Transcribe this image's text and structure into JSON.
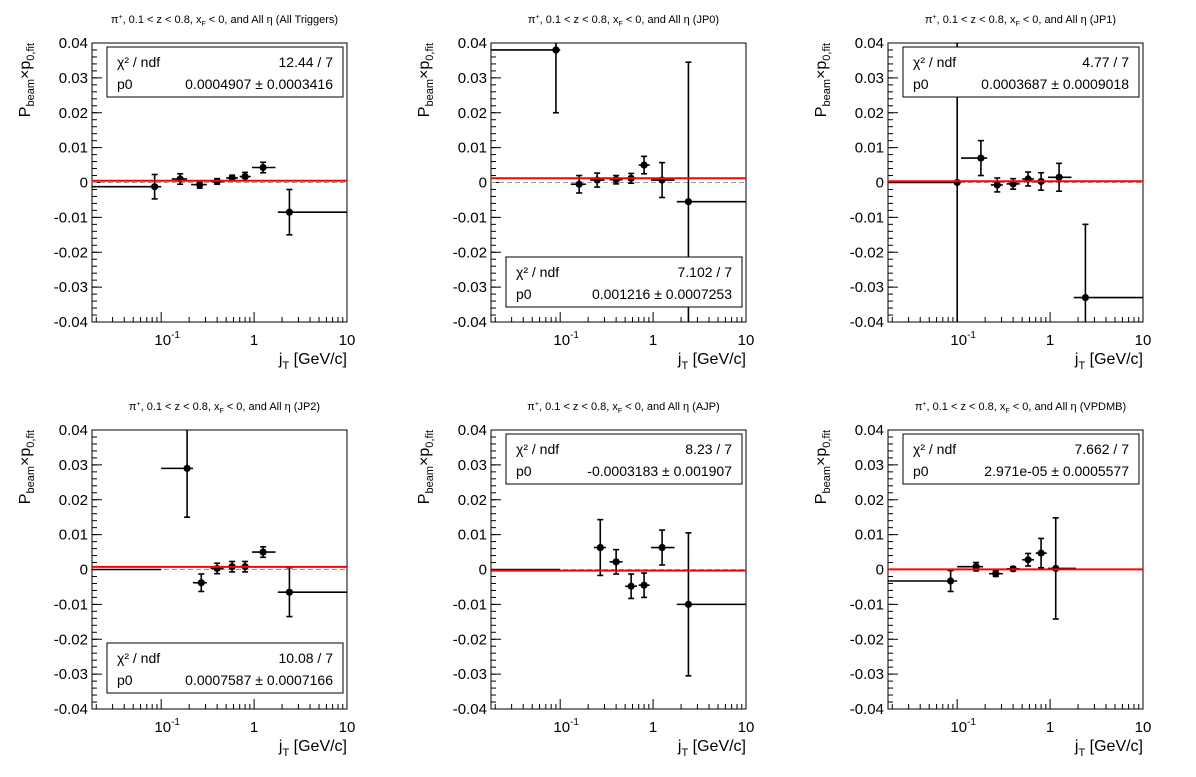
{
  "chart_data": [
    {
      "type": "scatter",
      "title": "π⁺, 0.1 < z < 0.8, x_F < 0, and All η (All Triggers)",
      "title_parts": {
        "pre": "π",
        "sup": "+",
        "mid": ", 0.1 < z < 0.8, x",
        "sub": "F",
        "post": " < 0, and All η (All Triggers)"
      },
      "ylabel": "P_beam×p_0,fit",
      "xlabel": "j_T [GeV/c]",
      "xscale": "log",
      "xlim": [
        0.018,
        10
      ],
      "ylim": [
        -0.04,
        0.04
      ],
      "fit": {
        "chi2_label": "χ² / ndf",
        "chi2_value": "12.44 / 7",
        "p0_label": "p0",
        "p0_value": "0.0004907 ± 0.0003416",
        "value": 0.0004907
      },
      "points": [
        {
          "x": 0.085,
          "xlo": 0.018,
          "xhi": 0.1,
          "y": -0.0012,
          "dy": 0.0035
        },
        {
          "x": 0.16,
          "xlo": 0.13,
          "xhi": 0.19,
          "y": 0.001,
          "dy": 0.0015
        },
        {
          "x": 0.26,
          "xlo": 0.21,
          "xhi": 0.31,
          "y": -0.0006,
          "dy": 0.001
        },
        {
          "x": 0.4,
          "xlo": 0.34,
          "xhi": 0.47,
          "y": 0.0003,
          "dy": 0.0008
        },
        {
          "x": 0.58,
          "xlo": 0.5,
          "xhi": 0.67,
          "y": 0.0013,
          "dy": 0.0008
        },
        {
          "x": 0.8,
          "xlo": 0.7,
          "xhi": 0.92,
          "y": 0.0017,
          "dy": 0.0012
        },
        {
          "x": 1.25,
          "xlo": 0.95,
          "xhi": 1.7,
          "y": 0.0043,
          "dy": 0.0015
        },
        {
          "x": 2.4,
          "xlo": 1.8,
          "xhi": 10,
          "y": -0.0085,
          "dy": 0.0065
        }
      ]
    },
    {
      "type": "scatter",
      "title": "π⁺, 0.1 < z < 0.8, x_F < 0, and All η (JP0)",
      "title_parts": {
        "pre": "π",
        "sup": "+",
        "mid": ", 0.1 < z < 0.8, x",
        "sub": "F",
        "post": " < 0, and All η (JP0)"
      },
      "ylabel": "P_beam×p_0,fit",
      "xlabel": "j_T [GeV/c]",
      "xscale": "log",
      "xlim": [
        0.018,
        10
      ],
      "ylim": [
        -0.04,
        0.04
      ],
      "fit": {
        "chi2_label": "χ² / ndf",
        "chi2_value": "7.102 / 7",
        "p0_label": "p0",
        "p0_value": "0.001216 ± 0.0007253",
        "value": 0.001216
      },
      "points": [
        {
          "x": 0.09,
          "xlo": 0.018,
          "xhi": 0.1,
          "y": 0.038,
          "dy": 0.018
        },
        {
          "x": 0.16,
          "xlo": 0.13,
          "xhi": 0.19,
          "y": -0.0005,
          "dy": 0.0025
        },
        {
          "x": 0.25,
          "xlo": 0.21,
          "xhi": 0.3,
          "y": 0.0007,
          "dy": 0.002
        },
        {
          "x": 0.4,
          "xlo": 0.34,
          "xhi": 0.47,
          "y": 0.0008,
          "dy": 0.0012
        },
        {
          "x": 0.58,
          "xlo": 0.5,
          "xhi": 0.67,
          "y": 0.0012,
          "dy": 0.0014
        },
        {
          "x": 0.8,
          "xlo": 0.7,
          "xhi": 0.92,
          "y": 0.005,
          "dy": 0.0025
        },
        {
          "x": 1.25,
          "xlo": 0.95,
          "xhi": 1.7,
          "y": 0.0007,
          "dy": 0.005
        },
        {
          "x": 2.4,
          "xlo": 1.8,
          "xhi": 10,
          "y": -0.0055,
          "dy": 0.04
        }
      ]
    },
    {
      "type": "scatter",
      "title": "π⁺, 0.1 < z < 0.8, x_F < 0, and All η (JP1)",
      "title_parts": {
        "pre": "π",
        "sup": "+",
        "mid": ", 0.1 < z < 0.8, x",
        "sub": "F",
        "post": " < 0, and All η (JP1)"
      },
      "ylabel": "P_beam×p_0,fit",
      "xlabel": "j_T [GeV/c]",
      "xscale": "log",
      "xlim": [
        0.018,
        10
      ],
      "ylim": [
        -0.04,
        0.04
      ],
      "fit": {
        "chi2_label": "χ² / ndf",
        "chi2_value": "4.77 / 7",
        "p0_label": "p0",
        "p0_value": "0.0003687 ± 0.0009018",
        "value": 0.0003687
      },
      "points": [
        {
          "x": 0.1,
          "xlo": 0.018,
          "xhi": 0.105,
          "y": 0.0,
          "dy": 0.042
        },
        {
          "x": 0.18,
          "xlo": 0.11,
          "xhi": 0.21,
          "y": 0.007,
          "dy": 0.005
        },
        {
          "x": 0.27,
          "xlo": 0.23,
          "xhi": 0.31,
          "y": -0.0007,
          "dy": 0.002
        },
        {
          "x": 0.4,
          "xlo": 0.34,
          "xhi": 0.47,
          "y": -0.0004,
          "dy": 0.0015
        },
        {
          "x": 0.58,
          "xlo": 0.5,
          "xhi": 0.67,
          "y": 0.001,
          "dy": 0.002
        },
        {
          "x": 0.8,
          "xlo": 0.7,
          "xhi": 0.92,
          "y": 0.0003,
          "dy": 0.0025
        },
        {
          "x": 1.25,
          "xlo": 0.95,
          "xhi": 1.7,
          "y": 0.0015,
          "dy": 0.004
        },
        {
          "x": 2.4,
          "xlo": 1.8,
          "xhi": 10,
          "y": -0.033,
          "dy": 0.021
        }
      ]
    },
    {
      "type": "scatter",
      "title": "π⁺, 0.1 < z < 0.8, x_F < 0, and All η (JP2)",
      "title_parts": {
        "pre": "π",
        "sup": "+",
        "mid": ", 0.1 < z < 0.8, x",
        "sub": "F",
        "post": " < 0, and All η (JP2)"
      },
      "ylabel": "P_beam×p_0,fit",
      "xlabel": "j_T [GeV/c]",
      "xscale": "log",
      "xlim": [
        0.018,
        10
      ],
      "ylim": [
        -0.04,
        0.04
      ],
      "fit": {
        "chi2_label": "χ² / ndf",
        "chi2_value": "10.08 / 7",
        "p0_label": "p0",
        "p0_value": "0.0007587 ± 0.0007166",
        "value": 0.0007587
      },
      "points": [
        {
          "x": 0.05,
          "xlo": 0.018,
          "xhi": 0.1,
          "y": 0.0,
          "dy": 0.0
        },
        {
          "x": 0.19,
          "xlo": 0.1,
          "xhi": 0.22,
          "y": 0.029,
          "dy": 0.014
        },
        {
          "x": 0.27,
          "xlo": 0.22,
          "xhi": 0.31,
          "y": -0.0038,
          "dy": 0.0025
        },
        {
          "x": 0.4,
          "xlo": 0.34,
          "xhi": 0.47,
          "y": 0.0003,
          "dy": 0.0015
        },
        {
          "x": 0.58,
          "xlo": 0.5,
          "xhi": 0.67,
          "y": 0.0008,
          "dy": 0.0015
        },
        {
          "x": 0.8,
          "xlo": 0.7,
          "xhi": 0.92,
          "y": 0.0008,
          "dy": 0.0015
        },
        {
          "x": 1.25,
          "xlo": 0.95,
          "xhi": 1.7,
          "y": 0.005,
          "dy": 0.0015
        },
        {
          "x": 2.4,
          "xlo": 1.8,
          "xhi": 10,
          "y": -0.0065,
          "dy": 0.007
        }
      ]
    },
    {
      "type": "scatter",
      "title": "π⁺, 0.1 < z < 0.8, x_F < 0, and All η (AJP)",
      "title_parts": {
        "pre": "π",
        "sup": "+",
        "mid": ", 0.1 < z < 0.8, x",
        "sub": "F",
        "post": " < 0, and All η (AJP)"
      },
      "ylabel": "P_beam×p_0,fit",
      "xlabel": "j_T [GeV/c]",
      "xscale": "log",
      "xlim": [
        0.018,
        10
      ],
      "ylim": [
        -0.04,
        0.04
      ],
      "fit": {
        "chi2_label": "χ² / ndf",
        "chi2_value": "8.23 / 7",
        "p0_label": "p0",
        "p0_value": "-0.0003183 ± 0.001907",
        "value": -0.0003183
      },
      "points": [
        {
          "x": 0.05,
          "xlo": 0.018,
          "xhi": 0.1,
          "y": 0.0,
          "dy": 0.0
        },
        {
          "x": 0.27,
          "xlo": 0.23,
          "xhi": 0.31,
          "y": 0.0063,
          "dy": 0.008
        },
        {
          "x": 0.4,
          "xlo": 0.34,
          "xhi": 0.47,
          "y": 0.0022,
          "dy": 0.0035
        },
        {
          "x": 0.58,
          "xlo": 0.5,
          "xhi": 0.67,
          "y": -0.0048,
          "dy": 0.0035
        },
        {
          "x": 0.8,
          "xlo": 0.7,
          "xhi": 0.92,
          "y": -0.0045,
          "dy": 0.0035
        },
        {
          "x": 1.25,
          "xlo": 0.95,
          "xhi": 1.7,
          "y": 0.0063,
          "dy": 0.005
        },
        {
          "x": 2.4,
          "xlo": 1.8,
          "xhi": 10,
          "y": -0.01,
          "dy": 0.0205
        }
      ]
    },
    {
      "type": "scatter",
      "title": "π⁺, 0.1 < z < 0.8, x_F < 0, and All η (VPDMB)",
      "title_parts": {
        "pre": "π",
        "sup": "+",
        "mid": ", 0.1 < z < 0.8, x",
        "sub": "F",
        "post": " < 0, and All η (VPDMB)"
      },
      "ylabel": "P_beam×p_0,fit",
      "xlabel": "j_T [GeV/c]",
      "xscale": "log",
      "xlim": [
        0.018,
        10
      ],
      "ylim": [
        -0.04,
        0.04
      ],
      "fit": {
        "chi2_label": "χ² / ndf",
        "chi2_value": "7.662 / 7",
        "p0_label": "p0",
        "p0_value": "2.971e-05 ± 0.0005577",
        "value": 2.971e-05
      },
      "points": [
        {
          "x": 0.085,
          "xlo": 0.018,
          "xhi": 0.1,
          "y": -0.0033,
          "dy": 0.003
        },
        {
          "x": 0.16,
          "xlo": 0.1,
          "xhi": 0.19,
          "y": 0.0008,
          "dy": 0.0012
        },
        {
          "x": 0.26,
          "xlo": 0.22,
          "xhi": 0.31,
          "y": -0.0012,
          "dy": 0.0008
        },
        {
          "x": 0.4,
          "xlo": 0.34,
          "xhi": 0.47,
          "y": 0.0002,
          "dy": 0.0006
        },
        {
          "x": 0.58,
          "xlo": 0.5,
          "xhi": 0.67,
          "y": 0.0028,
          "dy": 0.0018
        },
        {
          "x": 0.8,
          "xlo": 0.7,
          "xhi": 0.92,
          "y": 0.0047,
          "dy": 0.0042
        },
        {
          "x": 1.15,
          "xlo": 0.95,
          "xhi": 1.9,
          "y": 0.0003,
          "dy": 0.0145
        }
      ]
    }
  ],
  "axes": {
    "y_ticks": [
      "0.04",
      "0.03",
      "0.02",
      "0.01",
      "0",
      "-0.01",
      "-0.02",
      "-0.03",
      "-0.04"
    ],
    "x_ticks": [
      {
        "base": "10",
        "exp": "-1"
      },
      {
        "base": "1",
        "exp": ""
      },
      {
        "base": "10",
        "exp": ""
      }
    ],
    "ylabel_parts": {
      "a": "P",
      "a_sub": "beam",
      "b": "×p",
      "b_sub": "0,fit"
    },
    "xlabel_parts": {
      "a": "j",
      "a_sub": "T",
      "b": " [GeV/c]"
    }
  },
  "colors": {
    "fit": "#ff0000",
    "zero_line": "#9a9a9a",
    "markers": "#000000"
  }
}
